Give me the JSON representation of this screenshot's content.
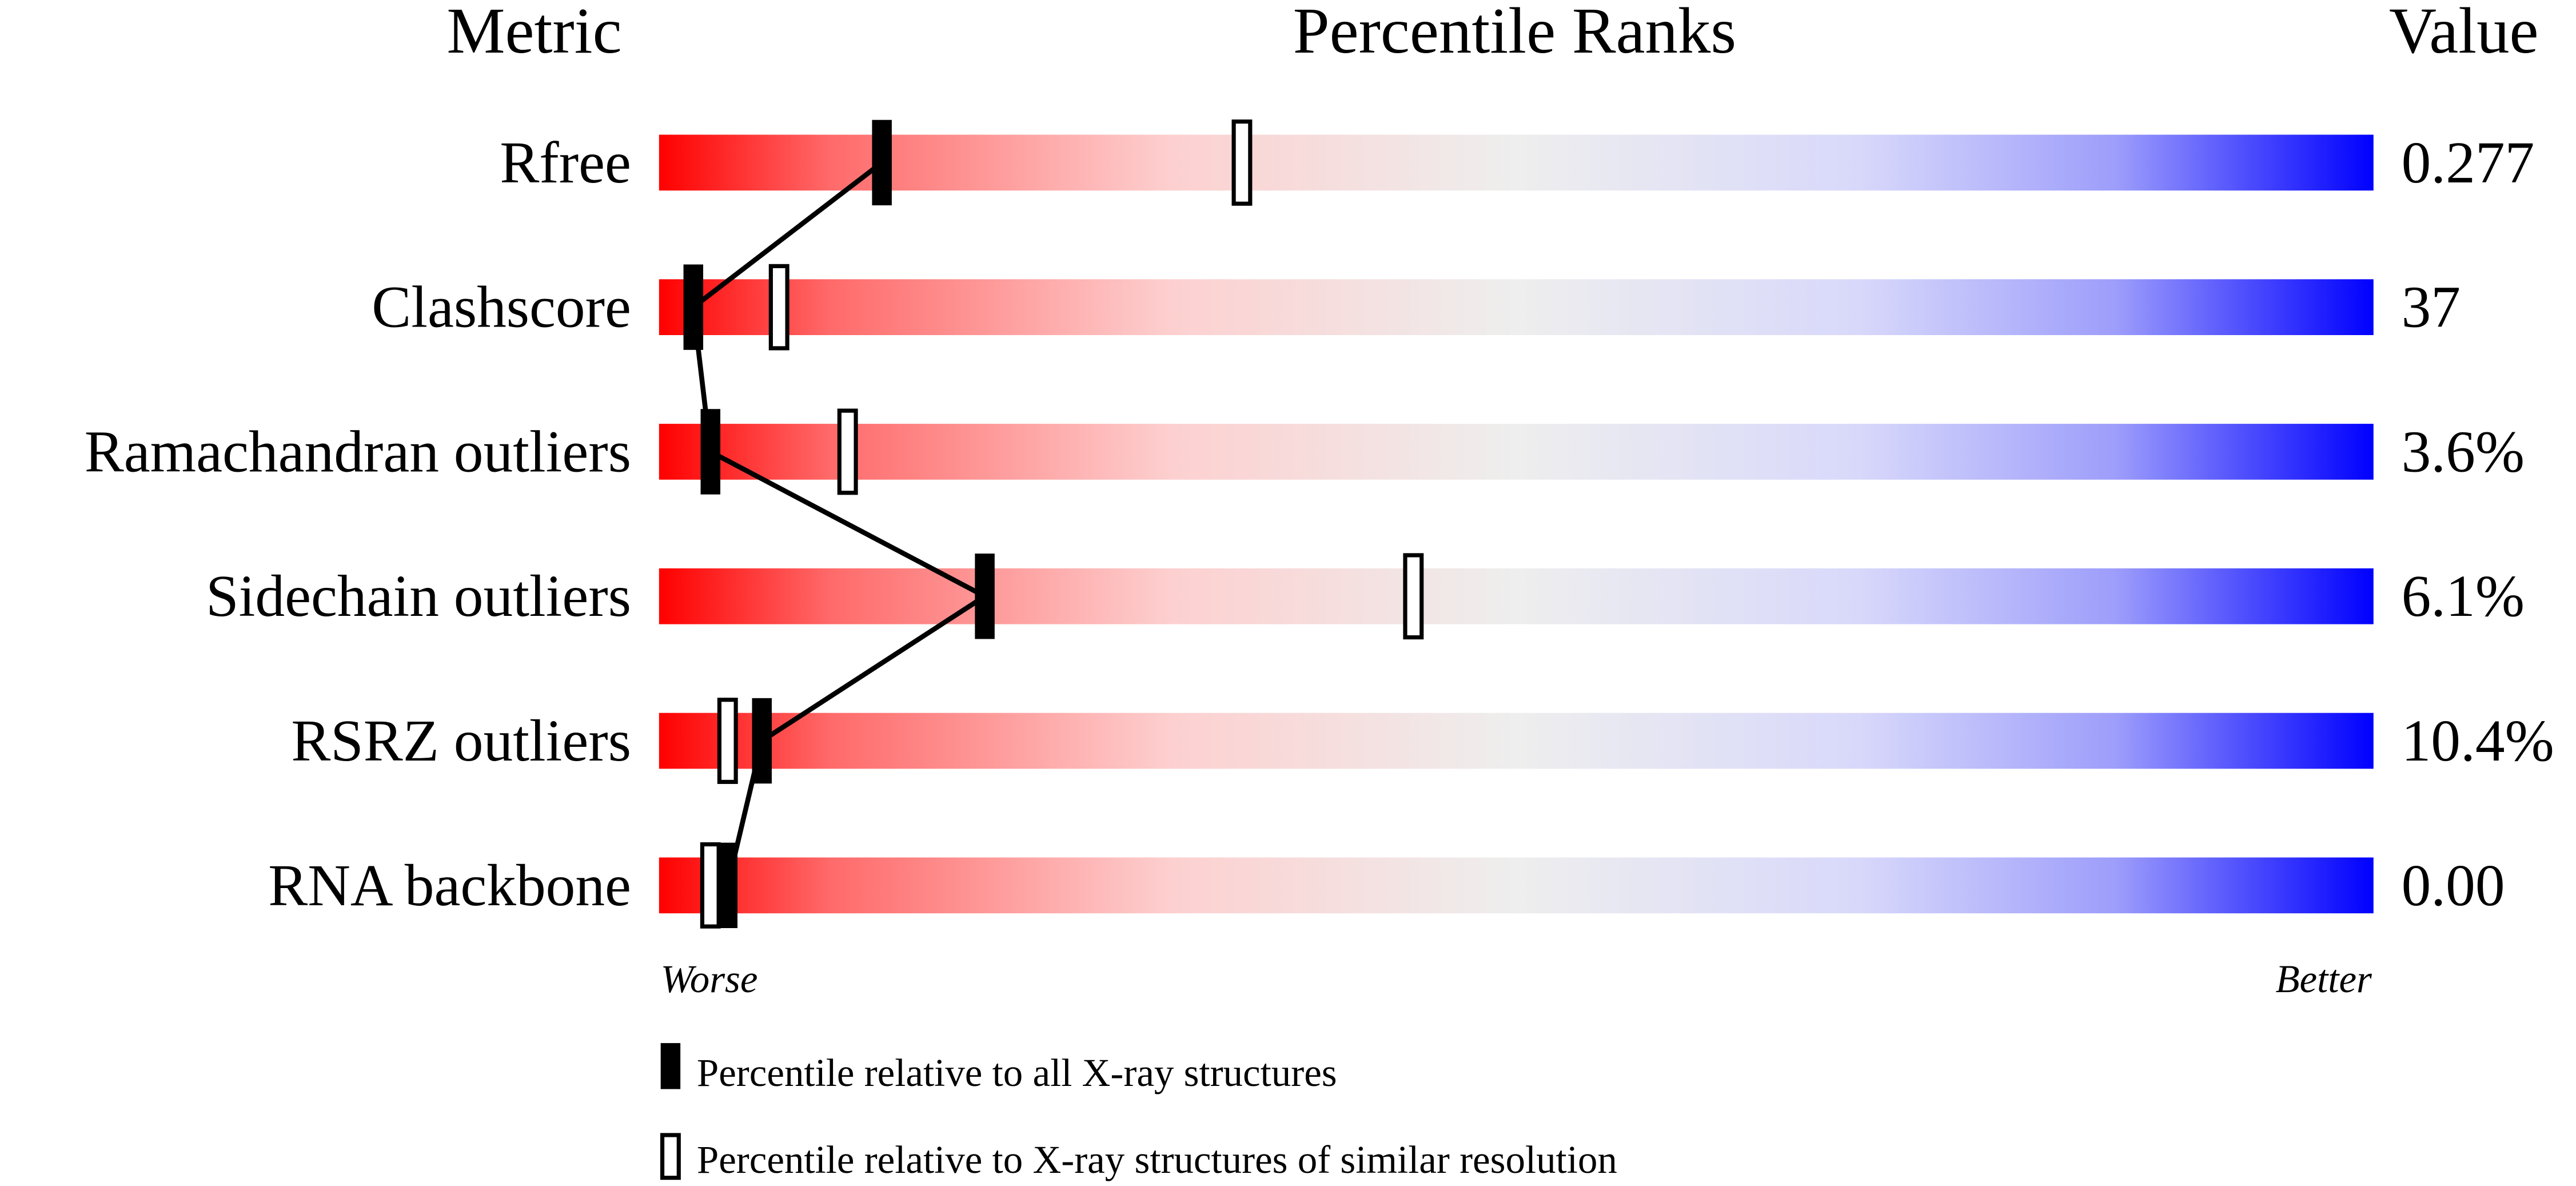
{
  "chart_data": {
    "type": "percentile-slider",
    "headers": {
      "metric": "Metric",
      "ranks": "Percentile Ranks",
      "value": "Value"
    },
    "xlim": [
      0,
      100
    ],
    "axis_labels": {
      "left": "Worse",
      "right": "Better"
    },
    "gradient_colors": [
      "#ff0000",
      "#eeeeee",
      "#0000ff"
    ],
    "metrics": [
      {
        "name": "Rfree",
        "value": "0.277",
        "percentile_all": 13,
        "percentile_similar": 34
      },
      {
        "name": "Clashscore",
        "value": "37",
        "percentile_all": 2,
        "percentile_similar": 7
      },
      {
        "name": "Ramachandran outliers",
        "value": "3.6%",
        "percentile_all": 3,
        "percentile_similar": 11
      },
      {
        "name": "Sidechain outliers",
        "value": "6.1%",
        "percentile_all": 19,
        "percentile_similar": 44
      },
      {
        "name": "RSRZ outliers",
        "value": "10.4%",
        "percentile_all": 6,
        "percentile_similar": 4
      },
      {
        "name": "RNA backbone",
        "value": "0.00",
        "percentile_all": 4,
        "percentile_similar": 3
      }
    ],
    "legend": [
      {
        "marker": "filled",
        "label": "Percentile relative to all X-ray structures"
      },
      {
        "marker": "open",
        "label": "Percentile relative to X-ray structures of similar resolution"
      }
    ]
  }
}
